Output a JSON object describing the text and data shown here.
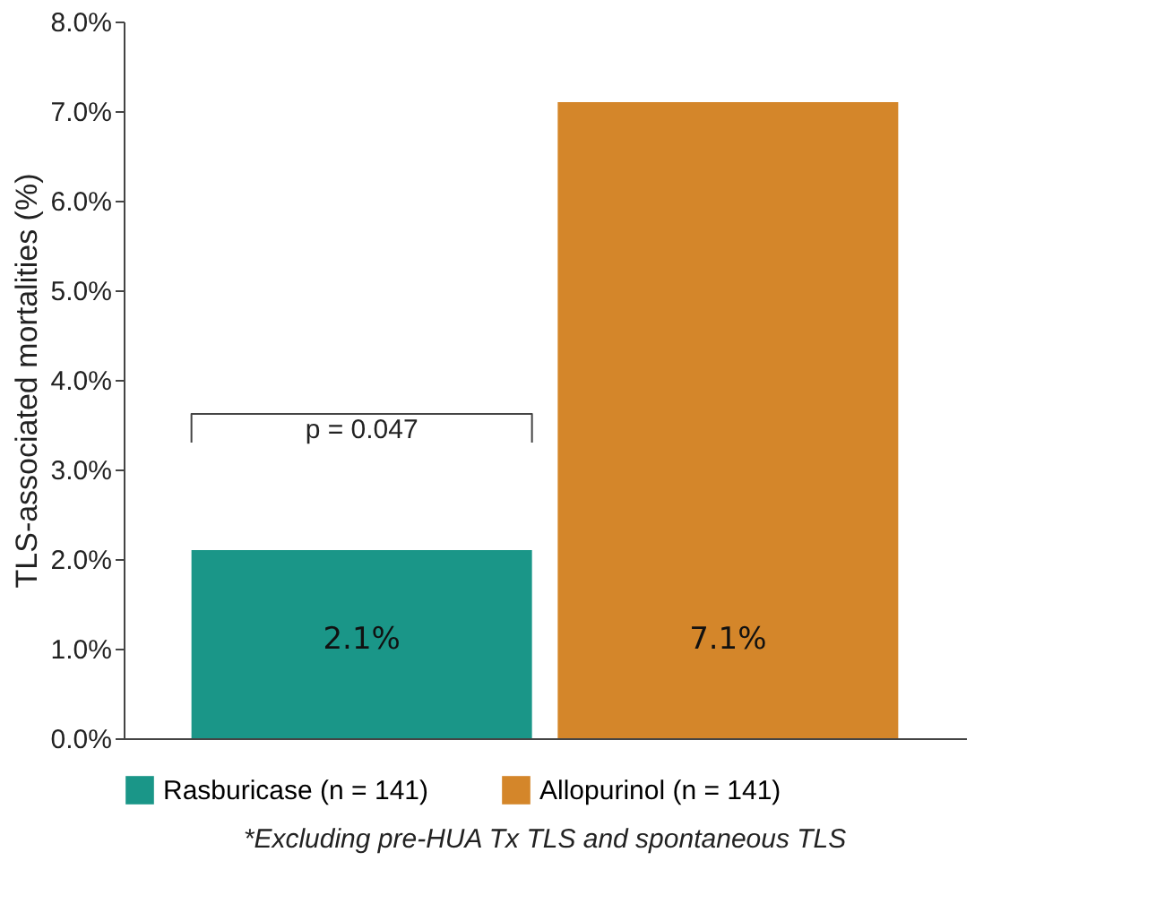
{
  "chart_data": {
    "type": "bar",
    "ylabel": "TLS-associated mortalities (%)",
    "categories": [
      null,
      null
    ],
    "series": [
      {
        "name": "Rasburicase (n = 141)",
        "color": "#1a9688",
        "values": [
          2.1,
          null
        ]
      },
      {
        "name": "Allopurinol (n = 141)",
        "color": "#d4862a",
        "values": [
          null,
          7.1
        ]
      }
    ],
    "value_labels": [
      "2.1%",
      "7.1%"
    ],
    "ylim": [
      0,
      8
    ],
    "yticks": [
      {
        "value": 0,
        "label": "0.0%"
      },
      {
        "value": 1,
        "label": "1.0%"
      },
      {
        "value": 2,
        "label": "2.0%"
      },
      {
        "value": 3,
        "label": "3.0%"
      },
      {
        "value": 4,
        "label": "4.0%"
      },
      {
        "value": 5,
        "label": "5.0%"
      },
      {
        "value": 6,
        "label": "6.0%"
      },
      {
        "value": 7,
        "label": "7.0%"
      },
      {
        "value": 8,
        "label": "8.0%"
      }
    ],
    "annotations": [
      "p = 0.047",
      "*Excluding pre-HUA Tx TLS and spontaneous TLS"
    ],
    "grid": false,
    "legend": "bottom"
  }
}
